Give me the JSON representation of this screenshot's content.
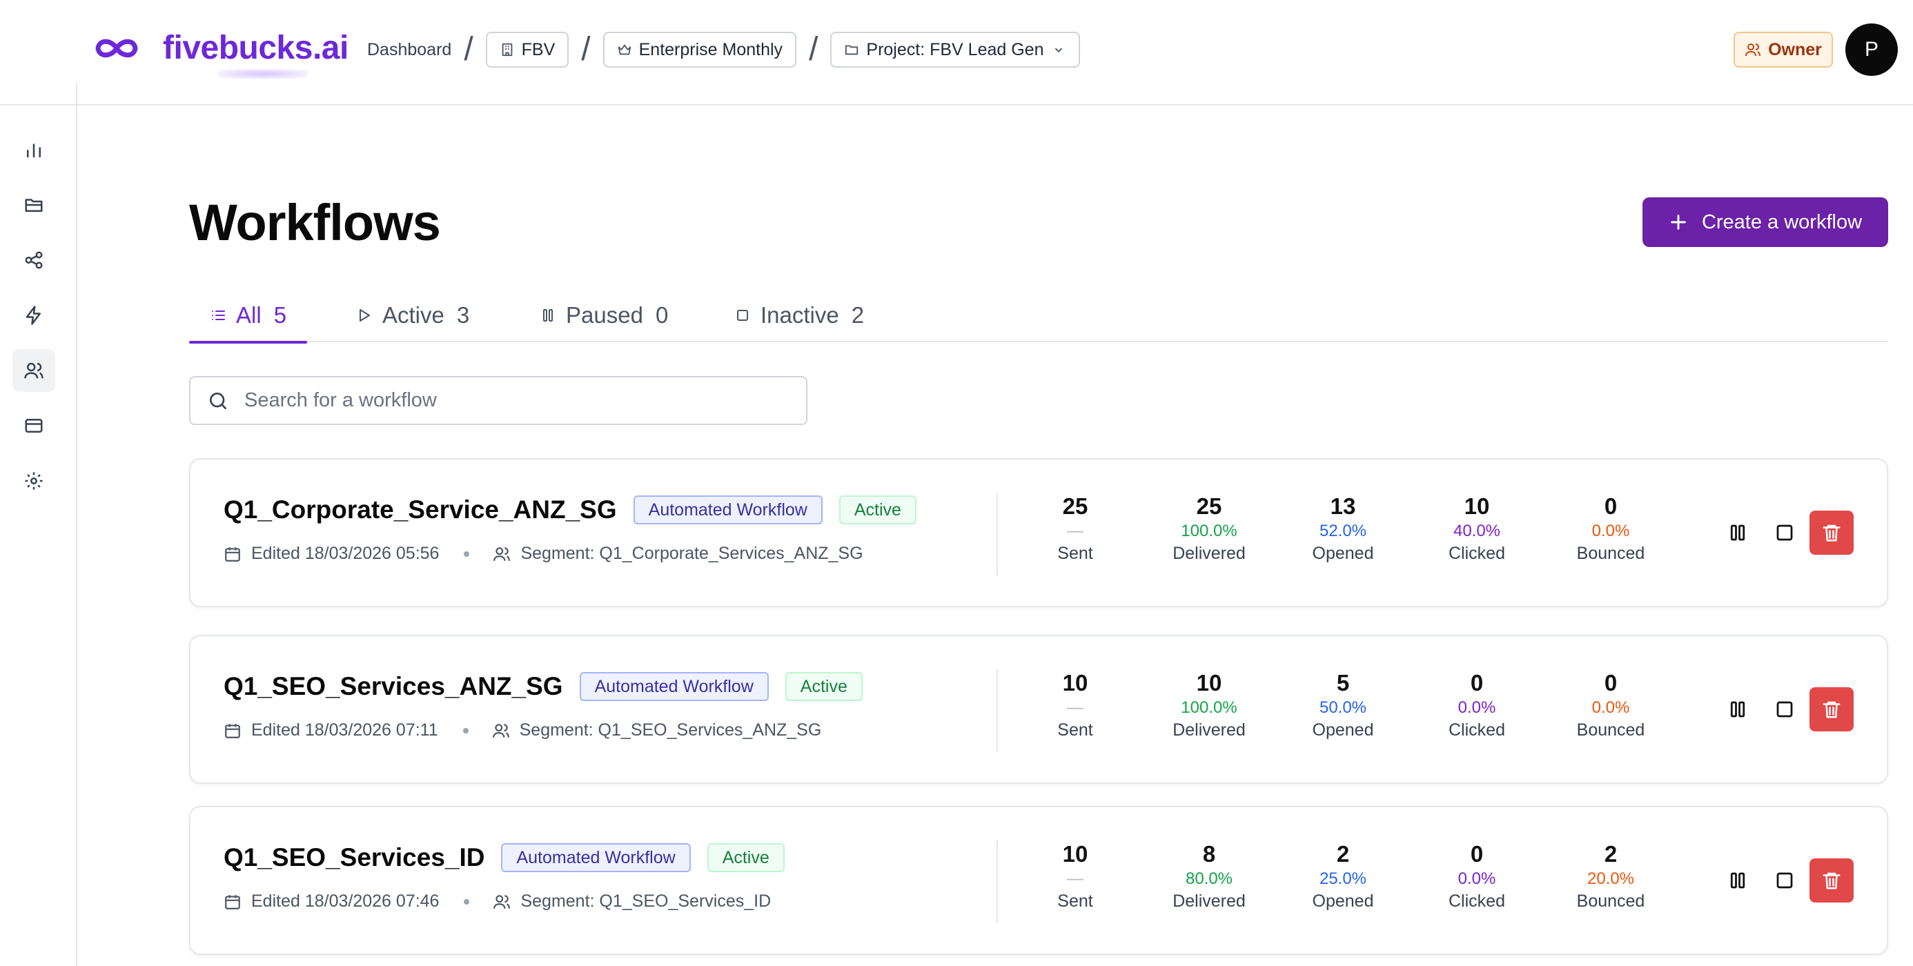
{
  "brand": {
    "name": "fivebucks.ai"
  },
  "breadcrumb": {
    "dashboard": "Dashboard",
    "separator": "/",
    "org": "FBV",
    "plan": "Enterprise Monthly",
    "project": "Project: FBV Lead Gen"
  },
  "header": {
    "role": "Owner",
    "avatar_initial": "P"
  },
  "sidebar": {
    "items": [
      {
        "icon": "bar-chart-icon"
      },
      {
        "icon": "folder-icon"
      },
      {
        "icon": "share-icon"
      },
      {
        "icon": "bolt-icon"
      },
      {
        "icon": "users-icon",
        "active": true
      },
      {
        "icon": "credit-card-icon"
      },
      {
        "icon": "gear-icon"
      }
    ]
  },
  "page": {
    "title": "Workflows",
    "create_label": "Create a workflow"
  },
  "tabs": [
    {
      "label": "All",
      "count": "5",
      "active": true
    },
    {
      "label": "Active",
      "count": "3"
    },
    {
      "label": "Paused",
      "count": "0"
    },
    {
      "label": "Inactive",
      "count": "2"
    }
  ],
  "search": {
    "placeholder": "Search for a workflow",
    "value": ""
  },
  "stat_labels": {
    "sent": "Sent",
    "delivered": "Delivered",
    "opened": "Opened",
    "clicked": "Clicked",
    "bounced": "Bounced"
  },
  "workflows": [
    {
      "name": "Q1_Corporate_Service_ANZ_SG",
      "type": "Automated Workflow",
      "status": "Active",
      "edited": "Edited 18/03/2026 05:56",
      "segment": "Segment: Q1_Corporate_Services_ANZ_SG",
      "sent": "25",
      "sent_pct": "—",
      "delivered": "25",
      "delivered_pct": "100.0%",
      "opened": "13",
      "opened_pct": "52.0%",
      "clicked": "10",
      "clicked_pct": "40.0%",
      "bounced": "0",
      "bounced_pct": "0.0%"
    },
    {
      "name": "Q1_SEO_Services_ANZ_SG",
      "type": "Automated Workflow",
      "status": "Active",
      "edited": "Edited 18/03/2026 07:11",
      "segment": "Segment: Q1_SEO_Services_ANZ_SG",
      "sent": "10",
      "sent_pct": "—",
      "delivered": "10",
      "delivered_pct": "100.0%",
      "opened": "5",
      "opened_pct": "50.0%",
      "clicked": "0",
      "clicked_pct": "0.0%",
      "bounced": "0",
      "bounced_pct": "0.0%"
    },
    {
      "name": "Q1_SEO_Services_ID",
      "type": "Automated Workflow",
      "status": "Active",
      "edited": "Edited 18/03/2026 07:46",
      "segment": "Segment: Q1_SEO_Services_ID",
      "sent": "10",
      "sent_pct": "—",
      "delivered": "8",
      "delivered_pct": "80.0%",
      "opened": "2",
      "opened_pct": "25.0%",
      "clicked": "0",
      "clicked_pct": "0.0%",
      "bounced": "2",
      "bounced_pct": "20.0%"
    }
  ],
  "colors": {
    "accent": "#6d28d9",
    "create_button": "#6b21a8",
    "delete_button": "#e14848",
    "delivered": "#16a34a",
    "opened": "#2563eb",
    "clicked": "#7e22ce",
    "bounced": "#ea580c"
  }
}
